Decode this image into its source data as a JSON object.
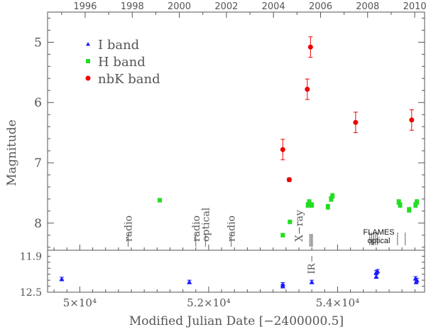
{
  "chart_data": {
    "type": "scatter",
    "xlabel": "Modified Julian Date [−2400000.5]",
    "ylabel": "Magnitude",
    "top_axis": {
      "ticks": [
        {
          "label": "1996",
          "mjd": 50083
        },
        {
          "label": "1998",
          "mjd": 50814
        },
        {
          "label": "2000",
          "mjd": 51544
        },
        {
          "label": "2002",
          "mjd": 52275
        },
        {
          "label": "2004",
          "mjd": 53005
        },
        {
          "label": "2006",
          "mjd": 53736
        },
        {
          "label": "2008",
          "mjd": 54466
        },
        {
          "label": "2010",
          "mjd": 55197
        }
      ]
    },
    "xlim": [
      49500,
      55350
    ],
    "bottom_ticks": [
      {
        "label": "5×10⁴",
        "value": 50000
      },
      {
        "label": "5.2×10⁴",
        "value": 52000
      },
      {
        "label": "5.4×10⁴",
        "value": 54000
      }
    ],
    "upper_panel": {
      "ylim": [
        4.5,
        8.45
      ],
      "inverted": true,
      "yticks": [
        {
          "label": "5",
          "value": 5
        },
        {
          "label": "6",
          "value": 6
        },
        {
          "label": "7",
          "value": 7
        },
        {
          "label": "8",
          "value": 8
        }
      ]
    },
    "lower_panel": {
      "ylim": [
        11.8,
        12.5
      ],
      "inverted": true,
      "yticks": [
        {
          "label": "11.9",
          "value": 11.9
        },
        {
          "label": "12.5",
          "value": 12.5
        }
      ]
    },
    "legend": {
      "placement": "top-left",
      "entries": [
        {
          "name": "I band",
          "color": "#1a1aff",
          "marker": "triangle"
        },
        {
          "name": "H band",
          "color": "#22dd22",
          "marker": "square"
        },
        {
          "name": "nbK band",
          "color": "#ee0000",
          "marker": "circle"
        }
      ]
    },
    "series": [
      {
        "name": "nbK band",
        "marker": "circle",
        "color": "#ee0000",
        "x": [
          53150,
          53250,
          53530,
          53580,
          54280,
          55150
        ],
        "y": [
          6.78,
          7.28,
          5.78,
          5.08,
          6.33,
          6.29
        ],
        "yerr": [
          0.17,
          0.03,
          0.17,
          0.17,
          0.17,
          0.17
        ]
      },
      {
        "name": "H band",
        "marker": "square",
        "color": "#22dd22",
        "x": [
          51240,
          53150,
          53260,
          53540,
          53560,
          53600,
          53850,
          53900,
          53920,
          54950,
          54970,
          55110,
          55210,
          55230
        ],
        "y": [
          7.62,
          8.2,
          7.98,
          7.7,
          7.65,
          7.7,
          7.73,
          7.6,
          7.55,
          7.65,
          7.7,
          7.78,
          7.7,
          7.65
        ],
        "yerr": [
          0.03,
          0.03,
          0.03,
          0.04,
          0.04,
          0.04,
          0.04,
          0.04,
          0.04,
          0.04,
          0.04,
          0.04,
          0.04,
          0.04
        ]
      },
      {
        "name": "I band",
        "marker": "triangle",
        "color": "#1a1aff",
        "x": [
          49720,
          51700,
          53150,
          53150,
          53600,
          54600,
          54600,
          54620,
          55210,
          55220,
          55230
        ],
        "y": [
          12.28,
          12.33,
          12.37,
          12.4,
          12.33,
          12.17,
          12.24,
          12.15,
          12.27,
          12.33,
          12.3
        ],
        "yerr": [
          0.03,
          0.03,
          0.03,
          0.03,
          0.03,
          0.03,
          0.03,
          0.03,
          0.03,
          0.03,
          0.03
        ]
      }
    ],
    "annotations": [
      {
        "label": "radio",
        "mjd": 50750,
        "font": "serif"
      },
      {
        "label": "radio",
        "mjd": 51800,
        "font": "serif"
      },
      {
        "label": "optical",
        "mjd": 51950,
        "font": "serif"
      },
      {
        "label": "radio",
        "mjd": 52350,
        "font": "serif"
      },
      {
        "label": "X−ray",
        "mjd": 53400,
        "font": "serif"
      },
      {
        "label": "IR",
        "mjd": 53600,
        "font": "serif",
        "panel": "lower"
      },
      {
        "label": "FLAMES",
        "mjd": 54640,
        "font": "sans",
        "line": 1
      },
      {
        "label": "optical",
        "mjd": 54640,
        "font": "sans",
        "line": 2
      }
    ],
    "epoch_marks": [
      50750,
      51800,
      51950,
      52350,
      53570,
      53590,
      53610,
      54500,
      54530,
      54560,
      54590,
      54620,
      54930,
      55050
    ]
  }
}
